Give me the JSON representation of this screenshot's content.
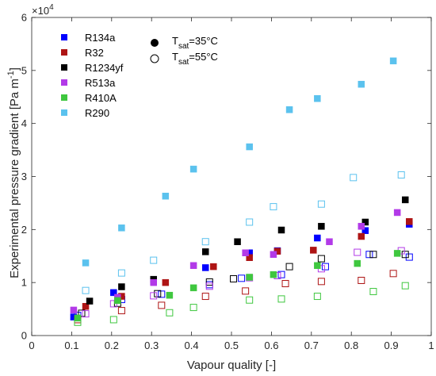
{
  "chart_data": {
    "type": "scatter",
    "xlabel": "Vapour quality [-]",
    "ylabel": "Experimental pressure gradient [Pa m",
    "ylabel_exponent": "-1",
    "ylabel_close": "]",
    "y_multiplier": "×10",
    "y_multiplier_exponent": "4",
    "xlim": [
      0,
      1
    ],
    "ylim": [
      0,
      60000
    ],
    "x_ticks": [
      "0",
      "0.1",
      "0.2",
      "0.3",
      "0.4",
      "0.5",
      "0.6",
      "0.7",
      "0.8",
      "0.9",
      "1"
    ],
    "x_tick_values": [
      0,
      0.1,
      0.2,
      0.3,
      0.4,
      0.5,
      0.6,
      0.7,
      0.8,
      0.9,
      1
    ],
    "y_ticks": [
      "0",
      "1",
      "2",
      "3",
      "4",
      "5",
      "6"
    ],
    "y_tick_values": [
      0,
      10000,
      20000,
      30000,
      40000,
      50000,
      60000
    ],
    "legend_position": "top-left",
    "saturation_legend": [
      {
        "symbol": "filled",
        "T": "T",
        "sub": "sat",
        "text": "=35°C"
      },
      {
        "symbol": "open",
        "T": "T",
        "sub": "sat",
        "text": "=55°C"
      }
    ],
    "series": [
      {
        "name": "R134a",
        "color": "#0000ff",
        "filled": [
          [
            0.105,
            3500
          ],
          [
            0.205,
            8100
          ],
          [
            0.305,
            10200
          ],
          [
            0.435,
            12800
          ],
          [
            0.545,
            15600
          ],
          [
            0.615,
            16000
          ],
          [
            0.715,
            18400
          ],
          [
            0.835,
            19800
          ],
          [
            0.945,
            21000
          ]
        ],
        "open": [
          [
            0.115,
            3800
          ],
          [
            0.225,
            6800
          ],
          [
            0.325,
            7800
          ],
          [
            0.445,
            9600
          ],
          [
            0.525,
            10800
          ],
          [
            0.625,
            11500
          ],
          [
            0.735,
            13000
          ],
          [
            0.845,
            15300
          ],
          [
            0.945,
            14800
          ]
        ]
      },
      {
        "name": "R32",
        "color": "#ae1414",
        "filled": [
          [
            0.135,
            5500
          ],
          [
            0.225,
            7400
          ],
          [
            0.335,
            10000
          ],
          [
            0.455,
            13000
          ],
          [
            0.545,
            14700
          ],
          [
            0.615,
            15900
          ],
          [
            0.705,
            16100
          ],
          [
            0.825,
            18700
          ],
          [
            0.945,
            21500
          ]
        ],
        "open": [
          [
            0.115,
            3000
          ],
          [
            0.225,
            4700
          ],
          [
            0.325,
            5700
          ],
          [
            0.435,
            7400
          ],
          [
            0.535,
            8400
          ],
          [
            0.635,
            9800
          ],
          [
            0.725,
            10200
          ],
          [
            0.825,
            10400
          ],
          [
            0.905,
            11700
          ]
        ]
      },
      {
        "name": "R1234yf",
        "color": "#000000",
        "filled": [
          [
            0.145,
            6500
          ],
          [
            0.225,
            9200
          ],
          [
            0.305,
            10600
          ],
          [
            0.435,
            15800
          ],
          [
            0.515,
            17700
          ],
          [
            0.625,
            19900
          ],
          [
            0.725,
            20600
          ],
          [
            0.835,
            21400
          ],
          [
            0.935,
            25600
          ]
        ],
        "open": [
          [
            0.125,
            4200
          ],
          [
            0.215,
            6100
          ],
          [
            0.315,
            7900
          ],
          [
            0.445,
            10100
          ],
          [
            0.505,
            10700
          ],
          [
            0.645,
            13000
          ],
          [
            0.725,
            14500
          ],
          [
            0.855,
            15300
          ],
          [
            0.935,
            15300
          ]
        ]
      },
      {
        "name": "R513a",
        "color": "#b23ae8",
        "filled": [
          [
            0.105,
            4800
          ],
          [
            0.215,
            7200
          ],
          [
            0.305,
            10000
          ],
          [
            0.405,
            13200
          ],
          [
            0.535,
            15600
          ],
          [
            0.605,
            15300
          ],
          [
            0.745,
            17700
          ],
          [
            0.825,
            20600
          ],
          [
            0.915,
            23200
          ]
        ],
        "open": [
          [
            0.135,
            4100
          ],
          [
            0.205,
            6000
          ],
          [
            0.305,
            7500
          ],
          [
            0.445,
            9300
          ],
          [
            0.545,
            10900
          ],
          [
            0.615,
            11300
          ],
          [
            0.725,
            12600
          ],
          [
            0.815,
            15700
          ],
          [
            0.925,
            16000
          ]
        ]
      },
      {
        "name": "R410A",
        "color": "#3fc73f",
        "filled": [
          [
            0.115,
            3300
          ],
          [
            0.215,
            6600
          ],
          [
            0.345,
            7600
          ],
          [
            0.405,
            9000
          ],
          [
            0.545,
            11000
          ],
          [
            0.605,
            11500
          ],
          [
            0.715,
            13200
          ],
          [
            0.815,
            13600
          ],
          [
            0.915,
            15500
          ]
        ],
        "open": [
          [
            0.115,
            2500
          ],
          [
            0.205,
            3000
          ],
          [
            0.345,
            4300
          ],
          [
            0.405,
            5300
          ],
          [
            0.545,
            6700
          ],
          [
            0.625,
            6900
          ],
          [
            0.715,
            7400
          ],
          [
            0.855,
            8300
          ],
          [
            0.935,
            9400
          ]
        ]
      },
      {
        "name": "R290",
        "color": "#5bc2ee",
        "filled": [
          [
            0.135,
            13700
          ],
          [
            0.225,
            20300
          ],
          [
            0.335,
            26300
          ],
          [
            0.405,
            31400
          ],
          [
            0.545,
            35600
          ],
          [
            0.645,
            42600
          ],
          [
            0.715,
            44700
          ],
          [
            0.825,
            47400
          ],
          [
            0.905,
            51800
          ]
        ],
        "open": [
          [
            0.135,
            8500
          ],
          [
            0.225,
            11800
          ],
          [
            0.305,
            14200
          ],
          [
            0.435,
            17700
          ],
          [
            0.545,
            21400
          ],
          [
            0.605,
            24300
          ],
          [
            0.725,
            24800
          ],
          [
            0.805,
            29800
          ],
          [
            0.925,
            30300
          ]
        ]
      }
    ]
  }
}
